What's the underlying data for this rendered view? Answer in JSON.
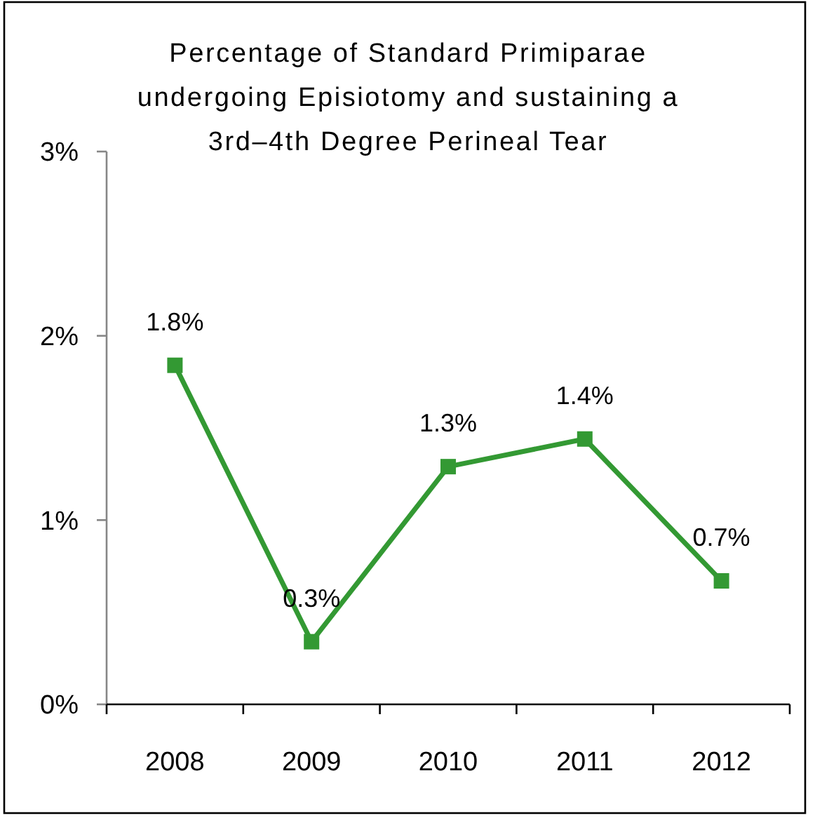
{
  "chart_data": {
    "type": "line",
    "title": "Percentage of Standard Primiparae undergoing Episiotomy and sustaining a 3rd–4th Degree Perineal Tear",
    "categories": [
      "2008",
      "2009",
      "2010",
      "2011",
      "2012"
    ],
    "series": [
      {
        "color": "#339933",
        "values": [
          1.84,
          0.34,
          1.29,
          1.44,
          0.67
        ],
        "value_labels": [
          "1.8%",
          "0.3%",
          "1.3%",
          "1.4%",
          "0.7%"
        ]
      }
    ],
    "ylim": [
      0,
      3
    ],
    "yticks": [
      {
        "value": 0,
        "label": "0%"
      },
      {
        "value": 1,
        "label": "1%"
      },
      {
        "value": 2,
        "label": "2%"
      },
      {
        "value": 3,
        "label": "3%"
      }
    ],
    "marker": "square",
    "line_style": "solid"
  }
}
